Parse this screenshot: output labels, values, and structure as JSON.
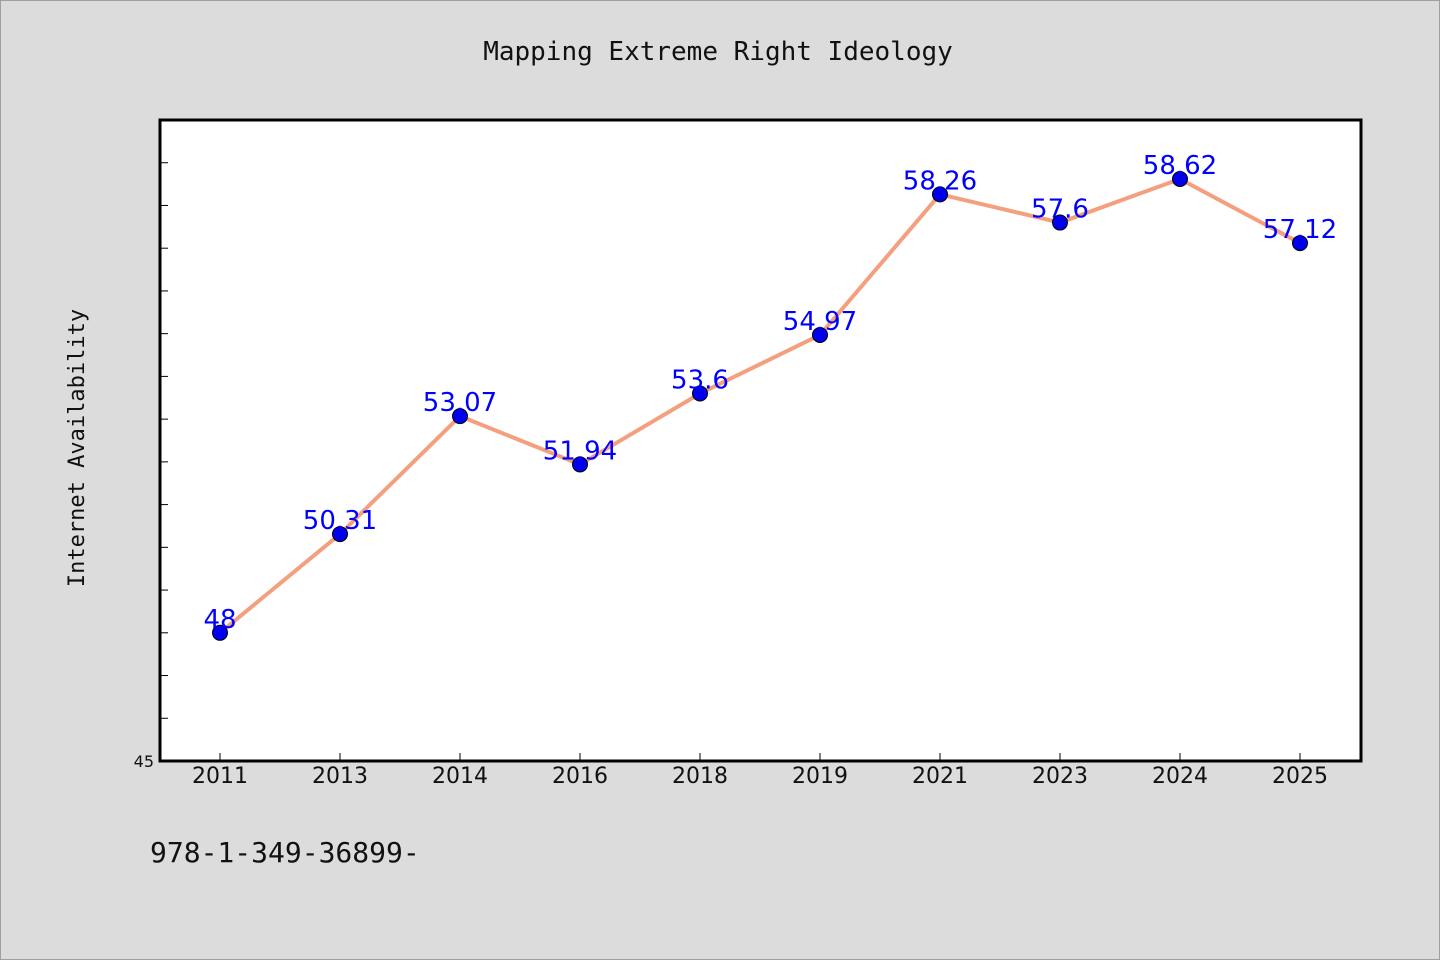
{
  "chart_data": {
    "type": "line",
    "title": "Mapping Extreme Right Ideology",
    "xlabel": "",
    "ylabel": "Internet Availability",
    "categories": [
      "2011",
      "2013",
      "2014",
      "2016",
      "2018",
      "2019",
      "2021",
      "2023",
      "2024",
      "2025"
    ],
    "series": [
      {
        "values": [
          48,
          50.31,
          53.07,
          51.94,
          53.6,
          54.97,
          58.26,
          57.6,
          58.62,
          57.12
        ],
        "labels": [
          "48",
          "50.31",
          "53.07",
          "51.94",
          "53.6",
          "54.97",
          "58.26",
          "57.6",
          "58.62",
          "57.12"
        ],
        "line_color": "#f4a07f",
        "marker_color": "#0000ee"
      }
    ],
    "ylim": [
      45,
      60
    ],
    "y_tick_labels": [
      "45"
    ],
    "grid": false,
    "legend": "none"
  },
  "footer": {
    "text": "978-1-349-36899-"
  },
  "colors": {
    "background": "#dcdcdc",
    "plot_area": "#ffffff",
    "data_label": "#0000ff"
  }
}
